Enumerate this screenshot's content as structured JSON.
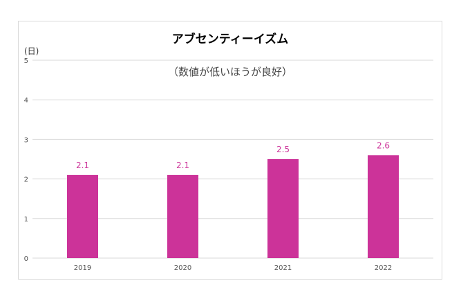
{
  "chart_data": {
    "type": "bar",
    "title": "アブセンティーイズム",
    "subtitle": "（数値が低いほうが良好）",
    "unit_label": "(日)",
    "categories": [
      "2019",
      "2020",
      "2021",
      "2022"
    ],
    "values": [
      2.1,
      2.1,
      2.5,
      2.6
    ],
    "data_labels": [
      "2.1",
      "2.1",
      "2.5",
      "2.6"
    ],
    "ylim": [
      0,
      5
    ],
    "yticks": [
      0,
      1,
      2,
      3,
      4,
      5
    ],
    "ytick_labels": [
      "0",
      "1",
      "2",
      "3",
      "4",
      "5"
    ],
    "grid": true,
    "bar_color": "#cc3399",
    "label_color": "#cc3399"
  }
}
